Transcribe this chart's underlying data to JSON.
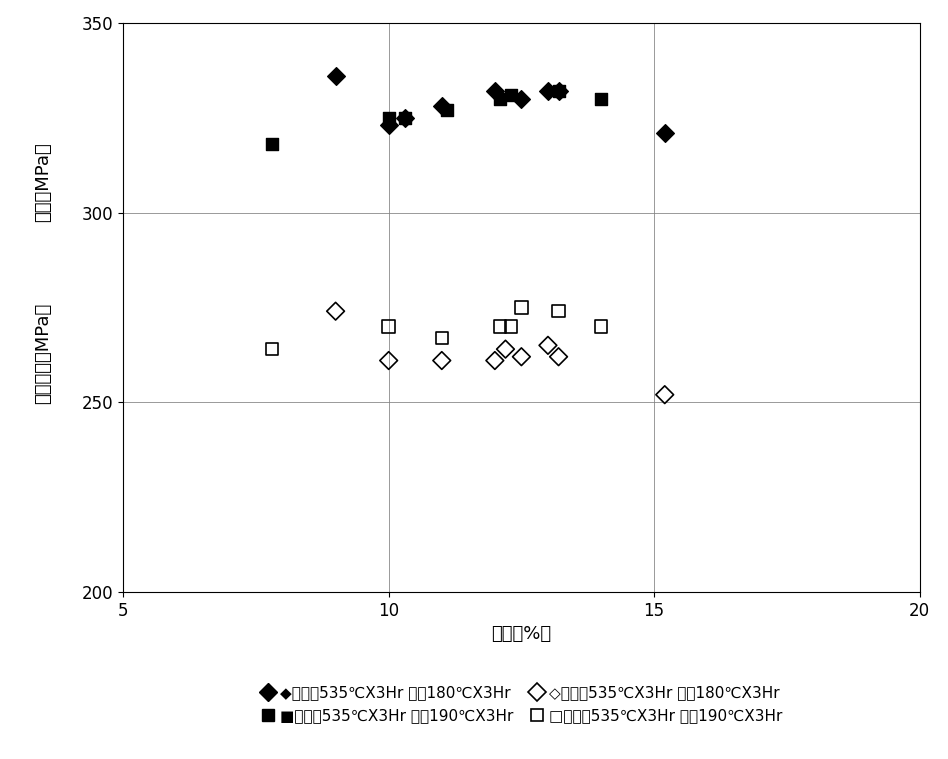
{
  "series": [
    {
      "label": "◆溶体化535℃X3Hr 時効180℃X3Hr",
      "marker": "D",
      "filled": true,
      "color": "black",
      "x": [
        9.0,
        10.0,
        10.3,
        11.0,
        12.0,
        12.5,
        13.0,
        13.2,
        15.2
      ],
      "y": [
        336,
        323,
        325,
        328,
        332,
        330,
        332,
        332,
        321
      ]
    },
    {
      "label": "■溶体化535℃X3Hr 時効190℃X3Hr",
      "marker": "s",
      "filled": true,
      "color": "black",
      "x": [
        7.8,
        10.0,
        10.3,
        11.1,
        12.1,
        12.3,
        13.2,
        14.0
      ],
      "y": [
        318,
        325,
        325,
        327,
        330,
        331,
        332,
        330
      ]
    },
    {
      "label": "◇溶体化535℃X3Hr 時効180℃X3Hr",
      "marker": "D",
      "filled": false,
      "color": "black",
      "x": [
        9.0,
        10.0,
        11.0,
        12.0,
        12.2,
        12.5,
        13.0,
        13.2,
        15.2
      ],
      "y": [
        274,
        261,
        261,
        261,
        264,
        262,
        265,
        262,
        252
      ]
    },
    {
      "label": "□溶体化535℃X3Hr 時効190℃X3Hr",
      "marker": "s",
      "filled": false,
      "color": "black",
      "x": [
        7.8,
        10.0,
        11.0,
        12.1,
        12.3,
        12.5,
        13.2,
        14.0
      ],
      "y": [
        264,
        270,
        267,
        270,
        270,
        275,
        274,
        270
      ]
    }
  ],
  "xlabel": "伸び（%）",
  "ylabel_top": "耐力（MPa）",
  "ylabel_bottom": "引張強さ（MPa）",
  "xlim": [
    5,
    20
  ],
  "ylim": [
    200,
    350
  ],
  "yticks": [
    200,
    250,
    300,
    350
  ],
  "xticks": [
    5,
    10,
    15,
    20
  ],
  "grid": true,
  "background_color": "#ffffff",
  "marker_size": 9,
  "tick_fontsize": 12,
  "label_fontsize": 13,
  "legend_fontsize": 11
}
